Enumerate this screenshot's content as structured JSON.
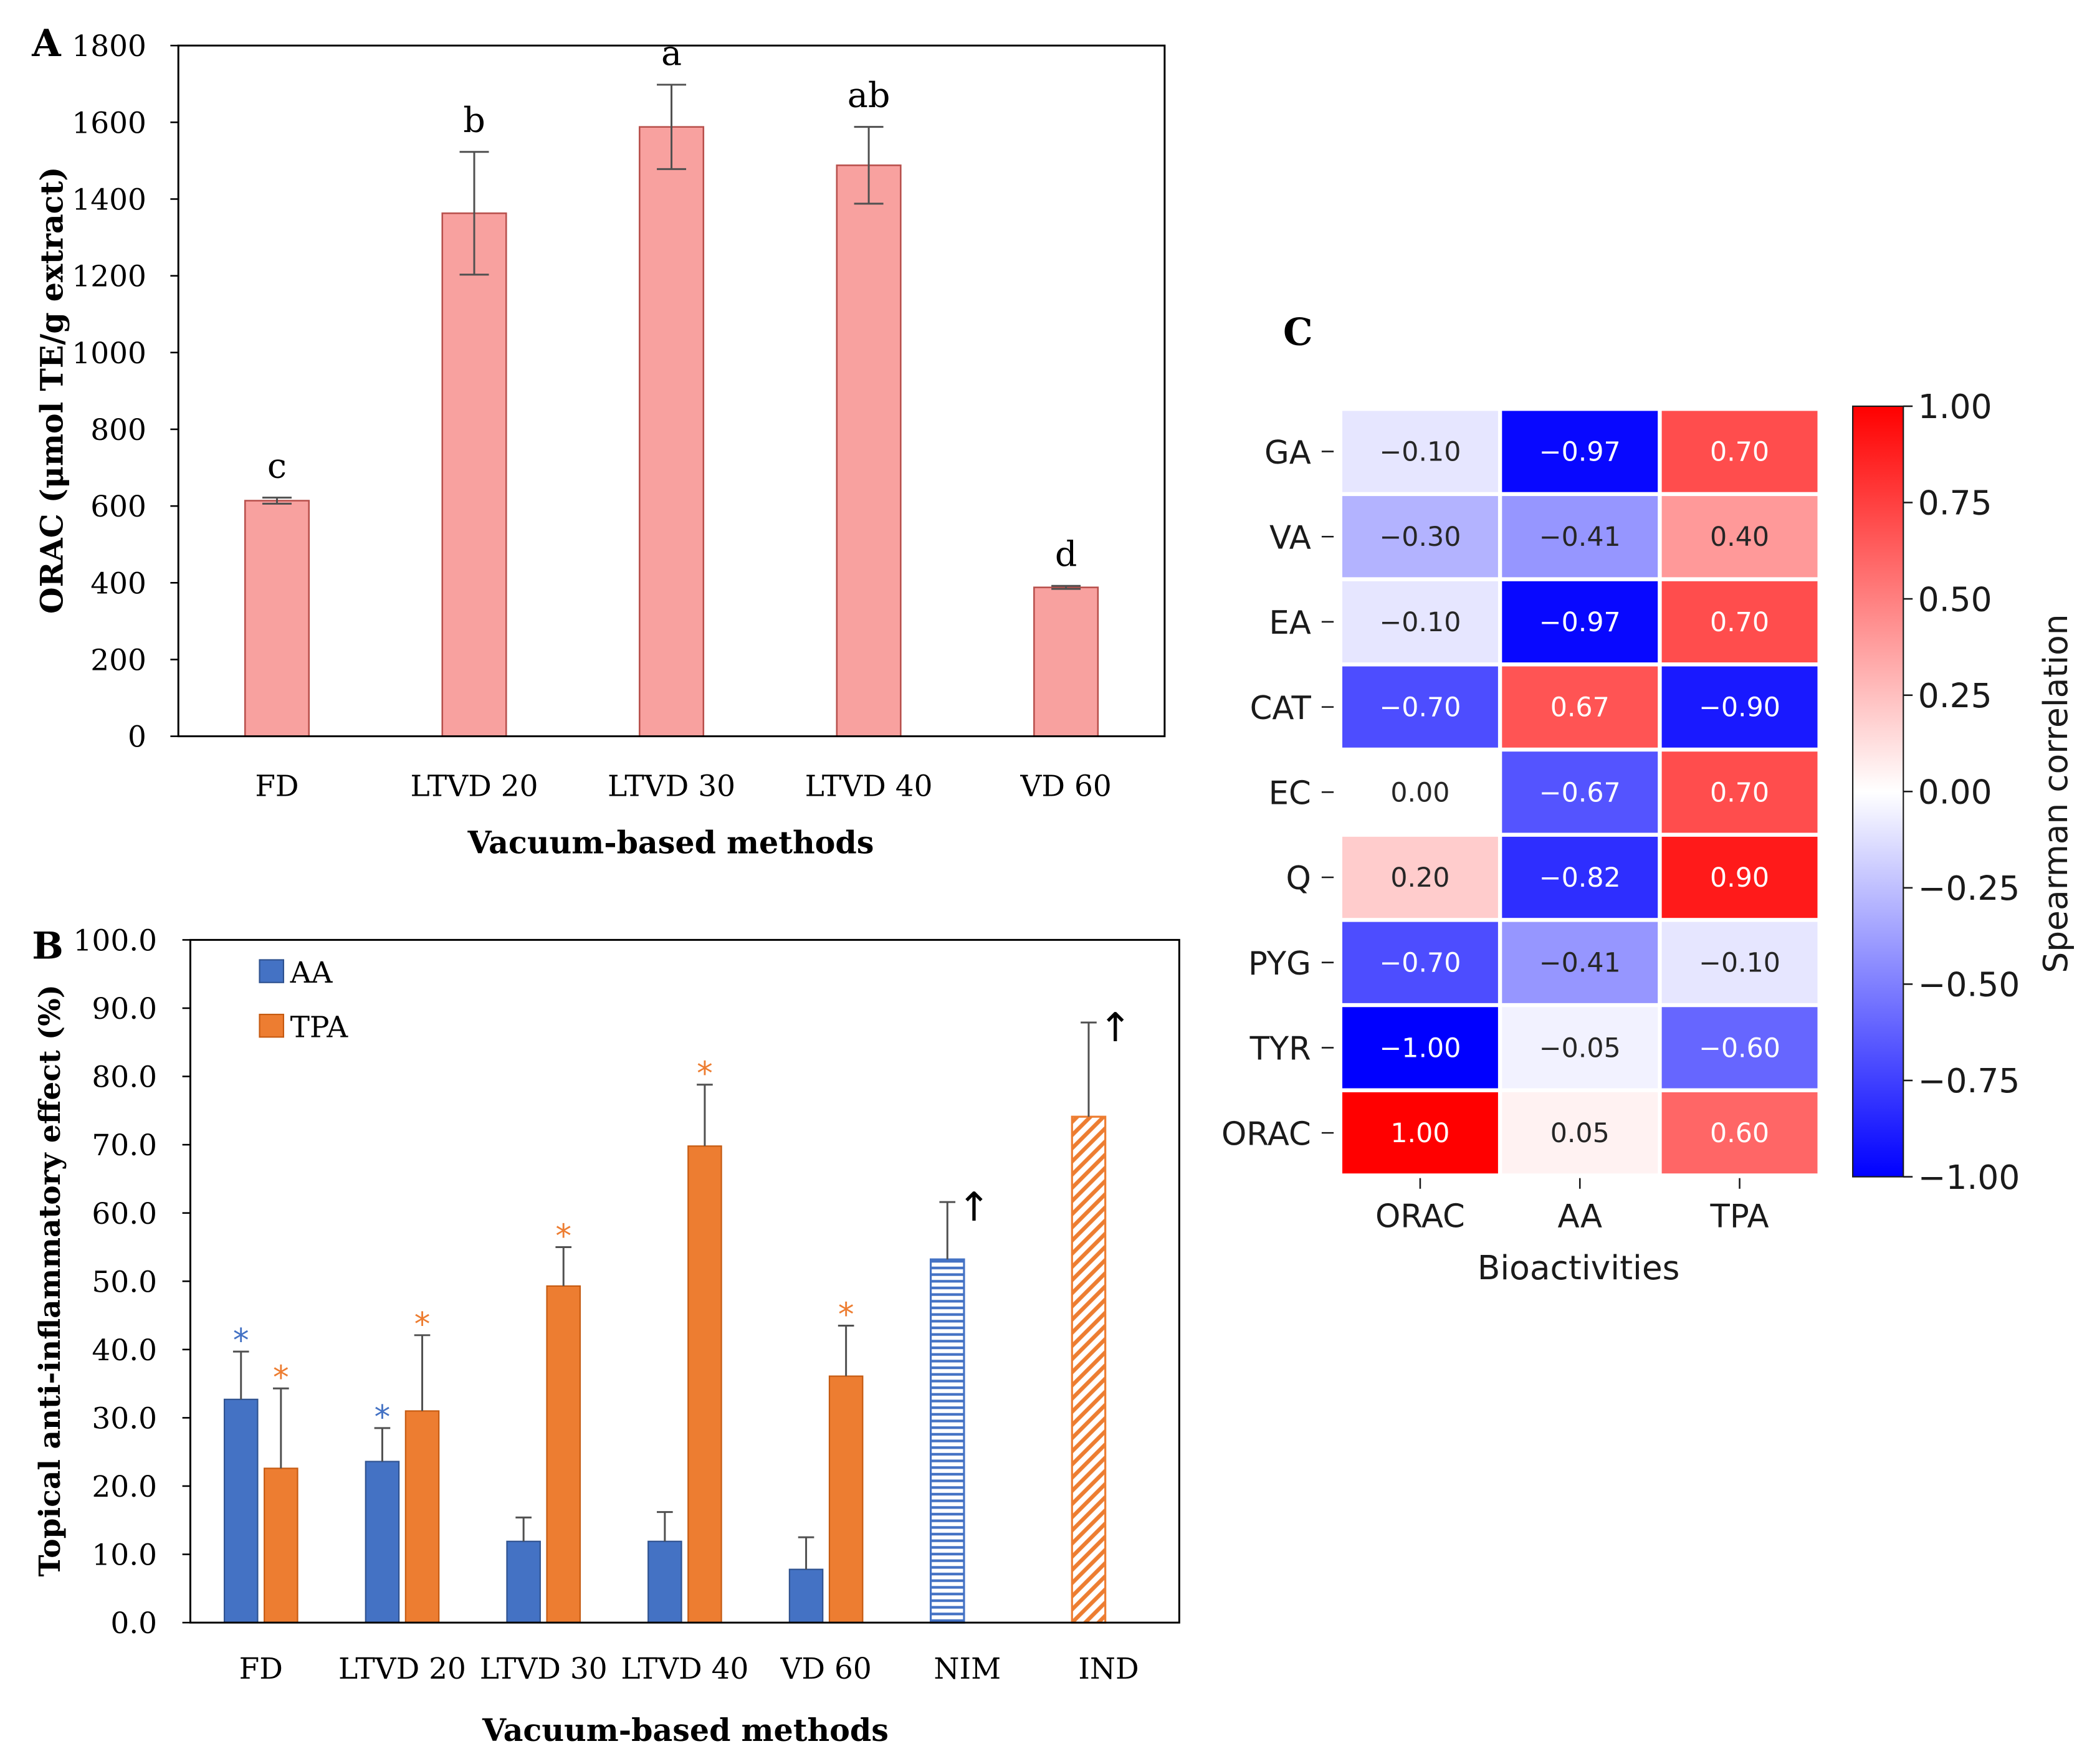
{
  "figure": {
    "panel_labels": [
      "A",
      "B",
      "C"
    ]
  },
  "chart_data": [
    {
      "panel": "A",
      "type": "bar",
      "title": "",
      "categories": [
        "FD",
        "LTVD 20",
        "LTVD 30",
        "LTVD 40",
        "VD 60"
      ],
      "series": [
        {
          "name": "ORAC",
          "values": [
            614,
            1363,
            1588,
            1488,
            388
          ],
          "errors": [
            8,
            160,
            110,
            100,
            4
          ],
          "color": "#F8A19F",
          "edge_color": "#B8504C"
        }
      ],
      "data_labels": [
        "c",
        "b",
        "a",
        "ab",
        "d"
      ],
      "xlabel": "Vacuum-based methods",
      "ylabel": "ORAC (μmol TE/g extract)",
      "ylim": [
        0,
        1800
      ],
      "yticks": [
        "0",
        "200",
        "400",
        "600",
        "800",
        "1000",
        "1200",
        "1400",
        "1600",
        "1800"
      ],
      "grid": false,
      "legend": "none"
    },
    {
      "panel": "B",
      "type": "bar",
      "title": "",
      "categories": [
        "FD",
        "LTVD 20",
        "LTVD 30",
        "LTVD 40",
        "VD 60",
        "NIM",
        "IND"
      ],
      "series": [
        {
          "name": "AA",
          "values": [
            32.7,
            23.6,
            11.9,
            11.9,
            7.8,
            53.2,
            null
          ],
          "errors": [
            7.0,
            4.9,
            3.5,
            4.3,
            4.7,
            8.4,
            null
          ],
          "significance": [
            "*",
            "*",
            null,
            null,
            null,
            null,
            null
          ],
          "color": "#4472C4",
          "edge_color": "#2F528F"
        },
        {
          "name": "TPA",
          "values": [
            22.6,
            31.0,
            49.3,
            69.8,
            36.1,
            null,
            74.1
          ],
          "errors": [
            11.7,
            11.1,
            5.7,
            9.0,
            7.4,
            null,
            13.8
          ],
          "significance": [
            "*",
            "*",
            "*",
            "*",
            "*",
            null,
            null
          ],
          "color": "#ED7D31",
          "edge_color": "#C55A11"
        }
      ],
      "hatched_categories": [
        "NIM",
        "IND"
      ],
      "arrows": [
        null,
        null,
        null,
        null,
        null,
        "↑",
        "↑"
      ],
      "xlabel": "Vacuum-based methods",
      "ylabel": "Topical anti-inflammatory effect (%)",
      "ylim": [
        0,
        100
      ],
      "yticks": [
        "0.0",
        "10.0",
        "20.0",
        "30.0",
        "40.0",
        "50.0",
        "60.0",
        "70.0",
        "80.0",
        "90.0",
        "100.0"
      ],
      "grid": false,
      "legend": "top-left"
    },
    {
      "panel": "C",
      "type": "heatmap",
      "title": "",
      "rows": [
        "GA",
        "VA",
        "EA",
        "CAT",
        "EC",
        "Q",
        "PYG",
        "TYR",
        "ORAC"
      ],
      "columns": [
        "ORAC",
        "AA",
        "TPA"
      ],
      "values": [
        [
          -0.1,
          -0.97,
          0.7
        ],
        [
          -0.3,
          -0.41,
          0.4
        ],
        [
          -0.1,
          -0.97,
          0.7
        ],
        [
          -0.7,
          0.67,
          -0.9
        ],
        [
          0.0,
          -0.67,
          0.7
        ],
        [
          0.2,
          -0.82,
          0.9
        ],
        [
          -0.7,
          -0.41,
          -0.1
        ],
        [
          -1.0,
          -0.05,
          -0.6
        ],
        [
          1.0,
          0.05,
          0.6
        ]
      ],
      "annotations": [
        [
          "−0.10",
          "−0.97",
          "0.70"
        ],
        [
          "−0.30",
          "−0.41",
          "0.40"
        ],
        [
          "−0.10",
          "−0.97",
          "0.70"
        ],
        [
          "−0.70",
          "0.67",
          "−0.90"
        ],
        [
          "0.00",
          "−0.67",
          "0.70"
        ],
        [
          "0.20",
          "−0.82",
          "0.90"
        ],
        [
          "−0.70",
          "−0.41",
          "−0.10"
        ],
        [
          "−1.00",
          "−0.05",
          "−0.60"
        ],
        [
          "1.00",
          "0.05",
          "0.60"
        ]
      ],
      "xlabel": "Bioactivities",
      "ylabel": "",
      "colorbar": {
        "label": "Spearman correlation",
        "range": [
          -1,
          1
        ],
        "colormap": "bwr",
        "low_color": "#0000FF",
        "mid_color": "#FFFFFF",
        "high_color": "#FF0000",
        "ticks": [
          1.0,
          0.75,
          0.5,
          0.25,
          0.0,
          -0.25,
          -0.5,
          -0.75,
          -1.0
        ],
        "tick_labels": [
          "1.00",
          "0.75",
          "0.50",
          "0.25",
          "0.00",
          "−0.25",
          "−0.50",
          "−0.75",
          "−1.00"
        ]
      }
    }
  ]
}
